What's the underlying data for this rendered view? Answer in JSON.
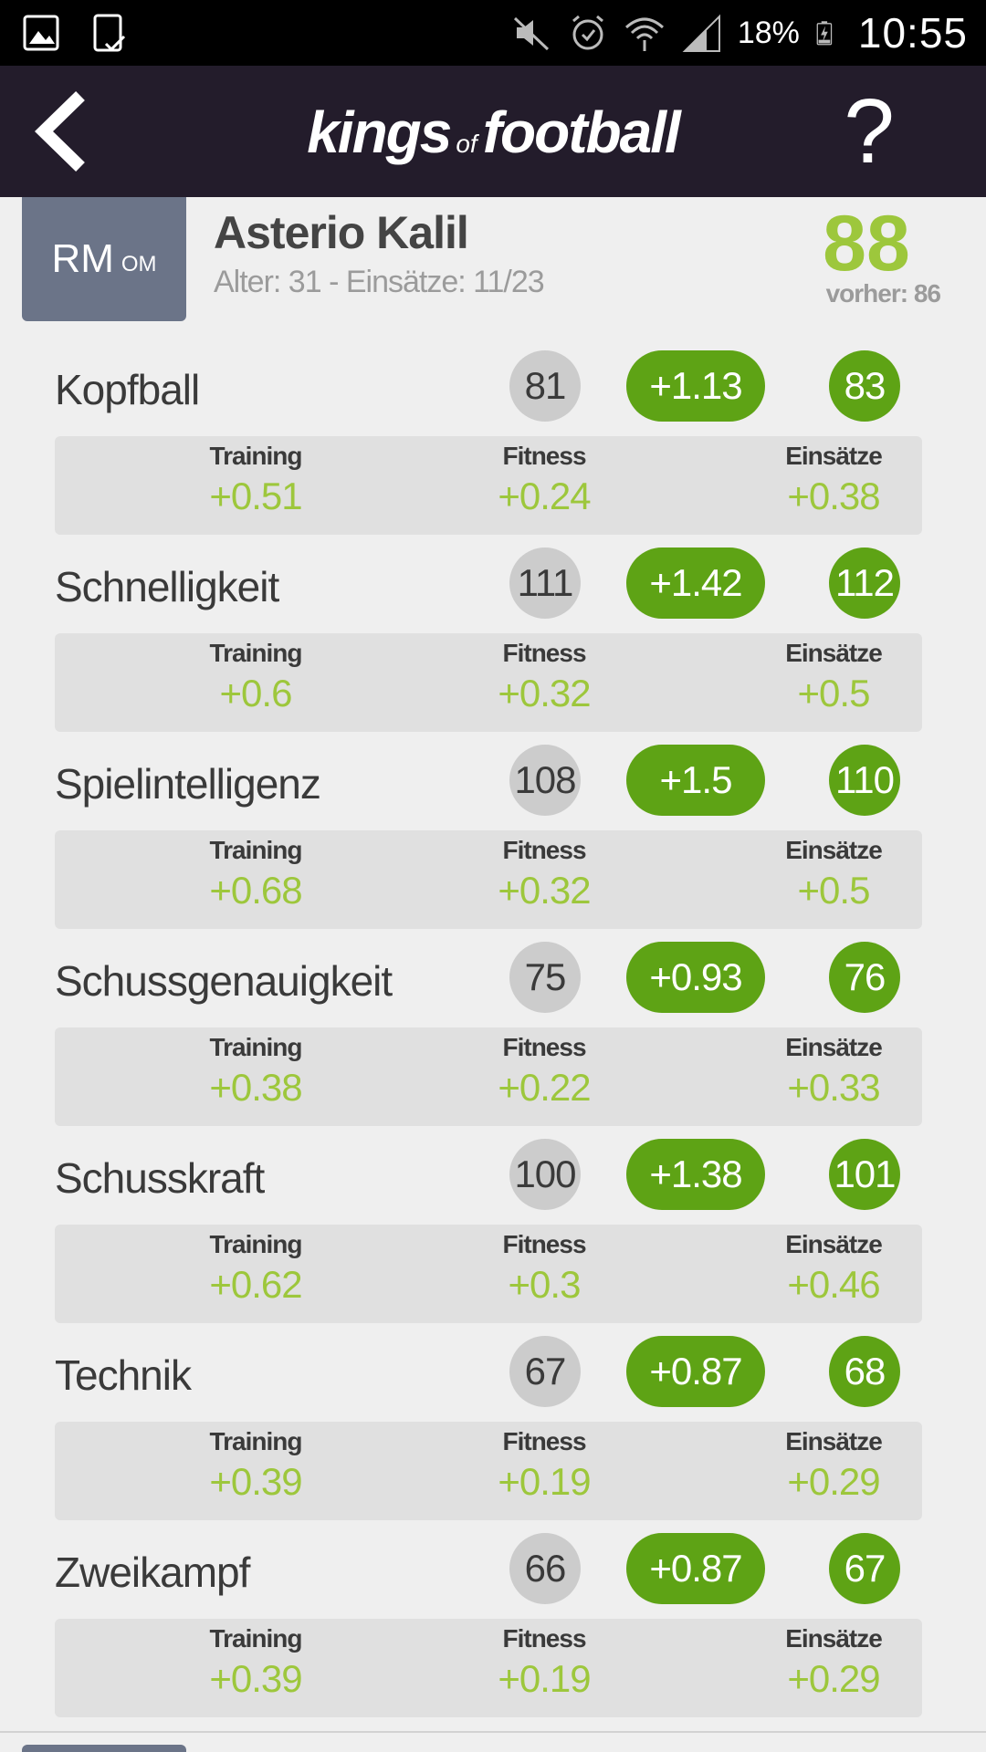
{
  "status_bar": {
    "battery_percent": "18%",
    "time": "10:55",
    "icons": [
      "gallery-icon",
      "tablet-check-icon",
      "mute-icon",
      "alarm-icon",
      "wifi-icon",
      "signal-icon",
      "battery-charging-icon"
    ]
  },
  "app_bar": {
    "logo_left": "kings",
    "logo_mid": "of",
    "logo_right": "football",
    "help_label": "?"
  },
  "player": {
    "position": "RM",
    "position_alt": "OM",
    "name": "Asterio Kalil",
    "meta": "Alter: 31 - Einsätze: 11/23",
    "rating": "88",
    "previous_rating": "vorher: 86"
  },
  "labels": {
    "training": "Training",
    "fitness": "Fitness",
    "matches": "Einsätze"
  },
  "attributes": [
    {
      "name": "Kopfball",
      "old": "81",
      "delta": "+1.13",
      "new": "83",
      "training": "+0.51",
      "fitness": "+0.24",
      "matches": "+0.38"
    },
    {
      "name": "Schnelligkeit",
      "old": "111",
      "delta": "+1.42",
      "new": "112",
      "training": "+0.6",
      "fitness": "+0.32",
      "matches": "+0.5"
    },
    {
      "name": "Spielintelligenz",
      "old": "108",
      "delta": "+1.5",
      "new": "110",
      "training": "+0.68",
      "fitness": "+0.32",
      "matches": "+0.5"
    },
    {
      "name": "Schussgenauigkeit",
      "old": "75",
      "delta": "+0.93",
      "new": "76",
      "training": "+0.38",
      "fitness": "+0.22",
      "matches": "+0.33"
    },
    {
      "name": "Schusskraft",
      "old": "100",
      "delta": "+1.38",
      "new": "101",
      "training": "+0.62",
      "fitness": "+0.3",
      "matches": "+0.46"
    },
    {
      "name": "Technik",
      "old": "67",
      "delta": "+0.87",
      "new": "68",
      "training": "+0.39",
      "fitness": "+0.19",
      "matches": "+0.29"
    },
    {
      "name": "Zweikampf",
      "old": "66",
      "delta": "+0.87",
      "new": "67",
      "training": "+0.39",
      "fitness": "+0.19",
      "matches": "+0.29"
    }
  ],
  "colors": {
    "app_bar_bg": "#231c2b",
    "position_badge": "#6b7488",
    "accent_green": "#5ea315",
    "light_green": "#9dc73c",
    "old_value_circle": "#cccccc"
  }
}
